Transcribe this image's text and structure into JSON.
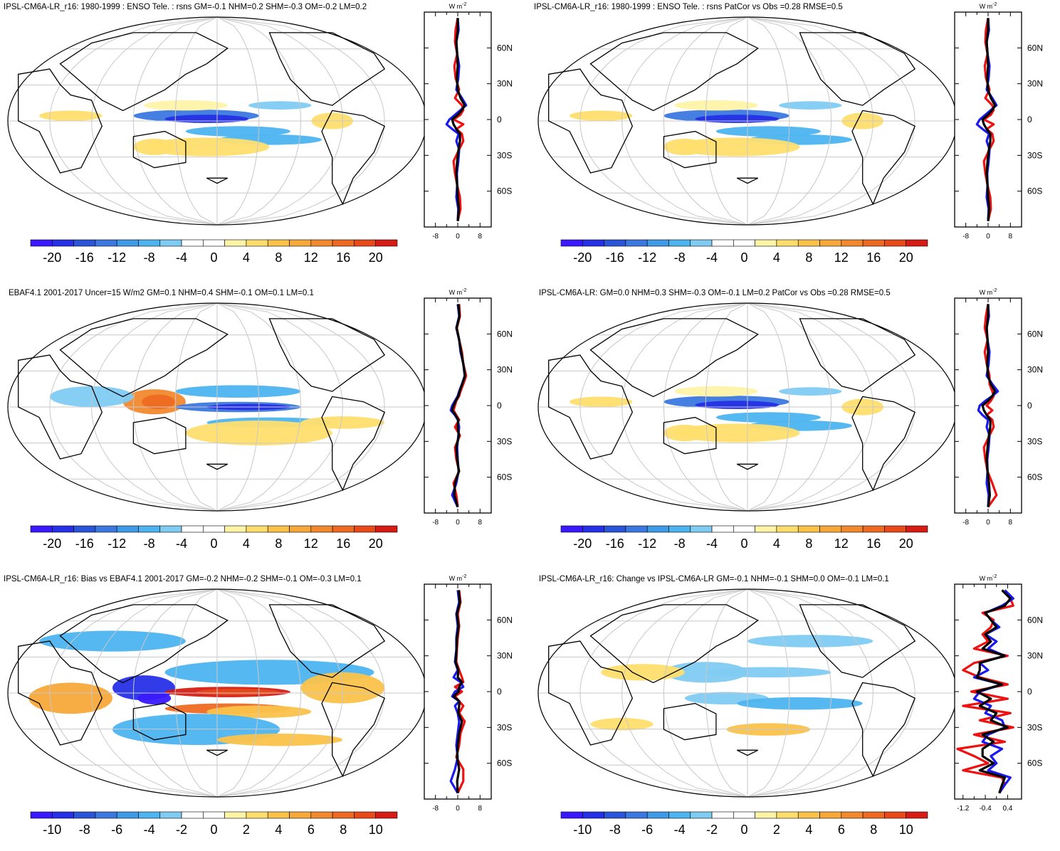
{
  "palette_diverging": [
    "#3a19ff",
    "#2630e6",
    "#2a55d8",
    "#3c78e0",
    "#3f9be8",
    "#4db4ef",
    "#7fcbf2",
    "#ffffff",
    "#ffffff",
    "#fff3a6",
    "#ffde6e",
    "#fbc24a",
    "#f7a83a",
    "#f2892e",
    "#ee6a22",
    "#e84a1a",
    "#d61c14"
  ],
  "colors": {
    "zonal_model": "#1a1aee",
    "zonal_obs": "#ee1111",
    "zonal_mean": "#000000",
    "coast": "#000000",
    "grid": "#c8c8c8"
  },
  "chart_data": [
    {
      "type": "map_with_zonal_profile",
      "title": "IPSL-CM6A-LR_r16: 1980-1999 : ENSO Tele. : rsns GM=-0.1 NHM=0.2 SHM=-0.3 OM=-0.2 LM=0.2",
      "colorbar_ticks": [
        "-20",
        "-16",
        "-12",
        "-8",
        "-4",
        "0",
        "4",
        "8",
        "12",
        "16",
        "20"
      ],
      "units": "W m",
      "units_exp": "-2",
      "zonal_xticks": [
        "-8",
        "0",
        "8"
      ],
      "zonal_xlim": [
        -12,
        12
      ],
      "zonal_yticks": [
        "60N",
        "30N",
        "0",
        "30S",
        "60S"
      ],
      "zonal_lat_values": [
        60,
        30,
        0,
        -30,
        -60
      ],
      "zonal_series": {
        "lat": [
          85,
          75,
          65,
          55,
          45,
          35,
          25,
          18,
          12,
          8,
          4,
          0,
          -4,
          -8,
          -12,
          -18,
          -25,
          -35,
          -45,
          -55,
          -65,
          -75,
          -85
        ],
        "model": [
          0,
          0.3,
          -0.5,
          -0.2,
          0.5,
          0.2,
          -0.5,
          1.5,
          3,
          1,
          -1,
          -3,
          -4,
          -2,
          0.3,
          -0.5,
          0.5,
          0.2,
          -0.3,
          -0.2,
          -0.5,
          0.2,
          0
        ],
        "obs": [
          0,
          -0.8,
          -1,
          -0.2,
          -1.2,
          -0.8,
          0.5,
          -1,
          1.5,
          2,
          1,
          -1.5,
          2,
          -0.5,
          1.5,
          2,
          0.5,
          -1.5,
          -1,
          -0.2,
          0.8,
          1,
          0
        ],
        "mean": [
          0,
          0,
          -0.5,
          -0.2,
          0,
          -0.3,
          0,
          1,
          2.5,
          1.5,
          0,
          -2,
          -1.5,
          -0.5,
          0.8,
          0.8,
          0.3,
          -0.2,
          -0.5,
          -0.2,
          0,
          0.4,
          0
        ]
      }
    },
    {
      "type": "map_with_zonal_profile",
      "title": "IPSL-CM6A-LR_r16: 1980-1999 : ENSO Tele. : rsns PatCor vs Obs =0.28 RMSE=0.5",
      "colorbar_ticks": [
        "-20",
        "-16",
        "-12",
        "-8",
        "-4",
        "0",
        "4",
        "8",
        "12",
        "16",
        "20"
      ],
      "units": "W m",
      "units_exp": "-2",
      "zonal_xticks": [
        "-8",
        "0",
        "8"
      ],
      "zonal_xlim": [
        -12,
        12
      ],
      "zonal_yticks": [
        "60N",
        "30N",
        "0",
        "30S",
        "60S"
      ],
      "zonal_lat_values": [
        60,
        30,
        0,
        -30,
        -60
      ],
      "zonal_series": {
        "lat": [
          85,
          75,
          65,
          55,
          45,
          35,
          25,
          18,
          12,
          8,
          4,
          0,
          -4,
          -8,
          -12,
          -18,
          -25,
          -35,
          -45,
          -55,
          -65,
          -75,
          -85
        ],
        "model": [
          0,
          0.3,
          -0.5,
          -0.2,
          0.5,
          0.2,
          -0.5,
          1.5,
          3,
          1,
          -1,
          -3,
          -4,
          -2,
          0.3,
          -0.5,
          0.5,
          0.2,
          -0.3,
          -0.2,
          -0.5,
          0.2,
          0
        ],
        "obs": [
          0,
          -0.8,
          -1,
          -0.2,
          -1.2,
          -0.8,
          0.5,
          -1,
          1.5,
          2,
          1,
          -1.5,
          2,
          -0.5,
          1.5,
          2,
          0.5,
          -1.5,
          -1,
          -0.2,
          0.8,
          1,
          0
        ],
        "mean": [
          0,
          0,
          -0.5,
          -0.2,
          0,
          -0.3,
          0,
          1,
          2.5,
          1.5,
          0,
          -2,
          -1.5,
          -0.5,
          0.8,
          0.8,
          0.3,
          -0.2,
          -0.5,
          -0.2,
          0,
          0.4,
          0
        ]
      }
    },
    {
      "type": "map_with_zonal_profile",
      "title": "EBAF4.1 2001-2017 Uncer=15 W/m2 GM=0.1 NHM=0.4 SHM=-0.1 OM=0.1 LM=0.1",
      "colorbar_ticks": [
        "-20",
        "-16",
        "-12",
        "-8",
        "-4",
        "0",
        "4",
        "8",
        "12",
        "16",
        "20"
      ],
      "units": "W m",
      "units_exp": "-2",
      "zonal_xticks": [
        "-8",
        "0",
        "8"
      ],
      "zonal_xlim": [
        -12,
        12
      ],
      "zonal_yticks": [
        "60N",
        "30N",
        "0",
        "30S",
        "60S"
      ],
      "zonal_lat_values": [
        60,
        30,
        0,
        -30,
        -60
      ],
      "zonal_series": {
        "lat": [
          85,
          75,
          65,
          55,
          45,
          35,
          25,
          18,
          12,
          8,
          4,
          0,
          -4,
          -8,
          -12,
          -18,
          -25,
          -35,
          -45,
          -55,
          -65,
          -75,
          -85
        ],
        "model": [
          0,
          0.5,
          -0.5,
          0.5,
          1,
          2,
          2.5,
          1.5,
          0.5,
          0,
          -1,
          -2,
          -2.5,
          -1,
          0,
          0.5,
          0.2,
          -0.2,
          0,
          0.3,
          -0.5,
          -2,
          0
        ],
        "obs": [
          0.5,
          0.8,
          -0.3,
          0.5,
          1.5,
          2,
          3,
          2,
          1,
          0.5,
          -0.5,
          -1,
          -1.5,
          -0.5,
          0.5,
          -1,
          0.8,
          -1,
          -0.5,
          0.5,
          -1.5,
          -0.5,
          0
        ],
        "mean": [
          0.2,
          0.6,
          -0.4,
          0.5,
          1.2,
          2,
          2.6,
          1.6,
          0.7,
          0.2,
          -0.7,
          -1.5,
          -2,
          -0.8,
          0.2,
          0,
          0.4,
          -0.5,
          -0.2,
          0.4,
          -1,
          -1.2,
          0
        ]
      }
    },
    {
      "type": "map_with_zonal_profile",
      "title": "IPSL-CM6A-LR: GM=0.0 NHM=0.3 SHM=-0.3 OM=-0.1 LM=0.2 PatCor vs Obs =0.28 RMSE=0.5",
      "colorbar_ticks": [
        "-20",
        "-16",
        "-12",
        "-8",
        "-4",
        "0",
        "4",
        "8",
        "12",
        "16",
        "20"
      ],
      "units": "W m",
      "units_exp": "-2",
      "zonal_xticks": [
        "-8",
        "0",
        "8"
      ],
      "zonal_xlim": [
        -12,
        12
      ],
      "zonal_yticks": [
        "60N",
        "30N",
        "0",
        "30S",
        "60S"
      ],
      "zonal_lat_values": [
        60,
        30,
        0,
        -30,
        -60
      ],
      "zonal_series": {
        "lat": [
          85,
          75,
          65,
          55,
          45,
          35,
          25,
          18,
          12,
          8,
          4,
          0,
          -4,
          -8,
          -12,
          -18,
          -25,
          -35,
          -45,
          -55,
          -65,
          -75,
          -85
        ],
        "model": [
          0,
          0.3,
          -0.5,
          -0.2,
          0.5,
          0.2,
          -0.5,
          1.5,
          3.5,
          1.5,
          -1,
          -3,
          -3.5,
          -2,
          0,
          -0.5,
          0.5,
          0.2,
          -0.3,
          -0.2,
          -0.5,
          0.2,
          0
        ],
        "obs": [
          0,
          -0.8,
          -1.2,
          -0.2,
          -1.2,
          -0.5,
          0.5,
          0.5,
          1.5,
          2,
          1,
          -0.5,
          1.5,
          -0.5,
          1.5,
          2,
          0.5,
          -1.5,
          -1,
          -0.2,
          1.5,
          3,
          0
        ],
        "mean": [
          0,
          0,
          -0.5,
          -0.2,
          0,
          -0.3,
          0,
          1,
          2.5,
          1.5,
          0,
          -2,
          -1.5,
          -0.5,
          0.8,
          0.8,
          0.3,
          -0.2,
          -0.5,
          -0.2,
          0.3,
          0.6,
          0
        ]
      }
    },
    {
      "type": "map_with_zonal_profile",
      "title": "IPSL-CM6A-LR_r16: Bias vs EBAF4.1 2001-2017 GM=-0.2 NHM=-0.2 SHM=-0.1 OM=-0.3 LM=0.1",
      "colorbar_ticks": [
        "-10",
        "-8",
        "-6",
        "-4",
        "-2",
        "0",
        "2",
        "4",
        "6",
        "8",
        "10"
      ],
      "units": "W m",
      "units_exp": "-2",
      "zonal_xticks": [
        "-8",
        "0",
        "8"
      ],
      "zonal_xlim": [
        -12,
        12
      ],
      "zonal_yticks": [
        "60N",
        "30N",
        "0",
        "30S",
        "60S"
      ],
      "zonal_lat_values": [
        60,
        30,
        0,
        -30,
        -60
      ],
      "zonal_series": {
        "lat": [
          85,
          75,
          65,
          55,
          45,
          35,
          25,
          18,
          12,
          8,
          4,
          0,
          -4,
          -8,
          -12,
          -18,
          -25,
          -35,
          -45,
          -55,
          -65,
          -75,
          -85
        ],
        "model": [
          0,
          0.5,
          -0.5,
          0,
          -0.5,
          -0.5,
          -1,
          0,
          -1.5,
          1,
          2,
          -1,
          -2,
          0.5,
          -1,
          0,
          0.5,
          0,
          -0.5,
          0,
          -1,
          -2.5,
          0
        ],
        "obs": [
          0.5,
          1,
          0,
          0.5,
          0,
          -0.3,
          -0.5,
          0.5,
          1.5,
          2,
          -1,
          1.5,
          -1,
          0.5,
          2,
          0.5,
          2.5,
          1,
          0.5,
          -0.5,
          2,
          2,
          0
        ],
        "mean": [
          0.3,
          0.8,
          -0.3,
          0.3,
          -0.3,
          -0.4,
          -0.8,
          0.2,
          0,
          1.5,
          0.5,
          0.3,
          -1.5,
          0.5,
          0.5,
          0.2,
          1.5,
          0.5,
          0,
          -0.2,
          0.5,
          -0.2,
          0
        ]
      }
    },
    {
      "type": "map_with_zonal_profile",
      "title": "IPSL-CM6A-LR_r16: Change vs IPSL-CM6A-LR GM=-0.1 NHM=-0.1 SHM=0.0 OM=-0.1 LM=0.1",
      "colorbar_ticks": [
        "-10",
        "-8",
        "-6",
        "-4",
        "-2",
        "0",
        "2",
        "4",
        "6",
        "8",
        "10"
      ],
      "units": "W m",
      "units_exp": "-2",
      "zonal_xticks": [
        "-1.2",
        "-0.4",
        "0.4"
      ],
      "zonal_xlim": [
        -1.5,
        0.9
      ],
      "zonal_yticks": [
        "60N",
        "30N",
        "0",
        "30S",
        "60S"
      ],
      "zonal_lat_values": [
        60,
        30,
        0,
        -30,
        -60
      ],
      "zonal_series": {
        "lat": [
          85,
          78,
          72,
          66,
          60,
          54,
          48,
          42,
          36,
          30,
          24,
          18,
          12,
          6,
          0,
          -6,
          -12,
          -18,
          -24,
          -30,
          -36,
          -42,
          -48,
          -54,
          -60,
          -66,
          -72,
          -78,
          -85
        ],
        "model": [
          0.3,
          0.6,
          0.2,
          -0.4,
          -0.2,
          0.1,
          -0.4,
          0,
          -0.3,
          0.3,
          -0.6,
          -0.3,
          -0.8,
          0.2,
          -0.6,
          -0.8,
          -0.2,
          -0.4,
          0.2,
          0.3,
          -0.3,
          -0.5,
          0.2,
          -0.2,
          0,
          -0.3,
          0.5,
          0.3,
          0.1
        ],
        "obs": [
          0.2,
          0.5,
          0.6,
          -0.5,
          -0.1,
          -0.2,
          -0.5,
          -0.3,
          -0.8,
          0.4,
          -0.8,
          -1.2,
          -0.6,
          0.4,
          -0.9,
          0.4,
          -1.2,
          0.5,
          -0.6,
          0.6,
          -0.8,
          0.3,
          -1.4,
          -0.8,
          -0.3,
          -1.2,
          0.2,
          0.3,
          0.1
        ],
        "mean": [
          0.2,
          0.5,
          0.3,
          -0.4,
          -0.2,
          0,
          -0.4,
          -0.2,
          -0.5,
          0.3,
          -0.6,
          -0.6,
          -0.7,
          0.2,
          -0.7,
          -0.2,
          -0.6,
          0,
          -0.2,
          0.4,
          -0.5,
          -0.1,
          -0.5,
          -0.5,
          -0.1,
          -0.6,
          0.3,
          0.2,
          0.1
        ]
      }
    }
  ]
}
